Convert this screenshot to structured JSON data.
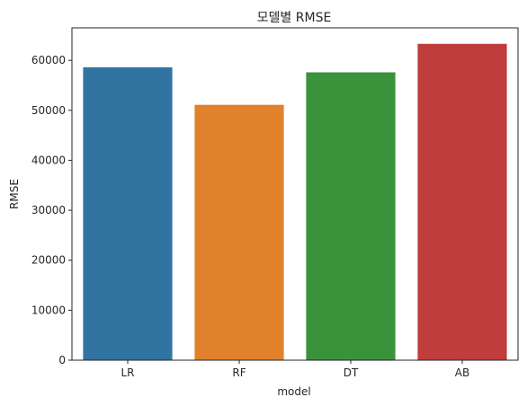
{
  "chart_data": {
    "type": "bar",
    "title": "모델별 RMSE",
    "xlabel": "model",
    "ylabel": "RMSE",
    "categories": [
      "LR",
      "RF",
      "DT",
      "AB"
    ],
    "values": [
      58600,
      51100,
      57600,
      63300
    ],
    "colors": [
      "#3274a1",
      "#e1812c",
      "#3a923a",
      "#c03d3e"
    ],
    "ylim": [
      0,
      66500
    ],
    "yticks": [
      0,
      10000,
      20000,
      30000,
      40000,
      50000,
      60000
    ],
    "ytick_labels": [
      "0",
      "10000",
      "20000",
      "30000",
      "40000",
      "50000",
      "60000"
    ],
    "grid": false,
    "legend": "none"
  }
}
